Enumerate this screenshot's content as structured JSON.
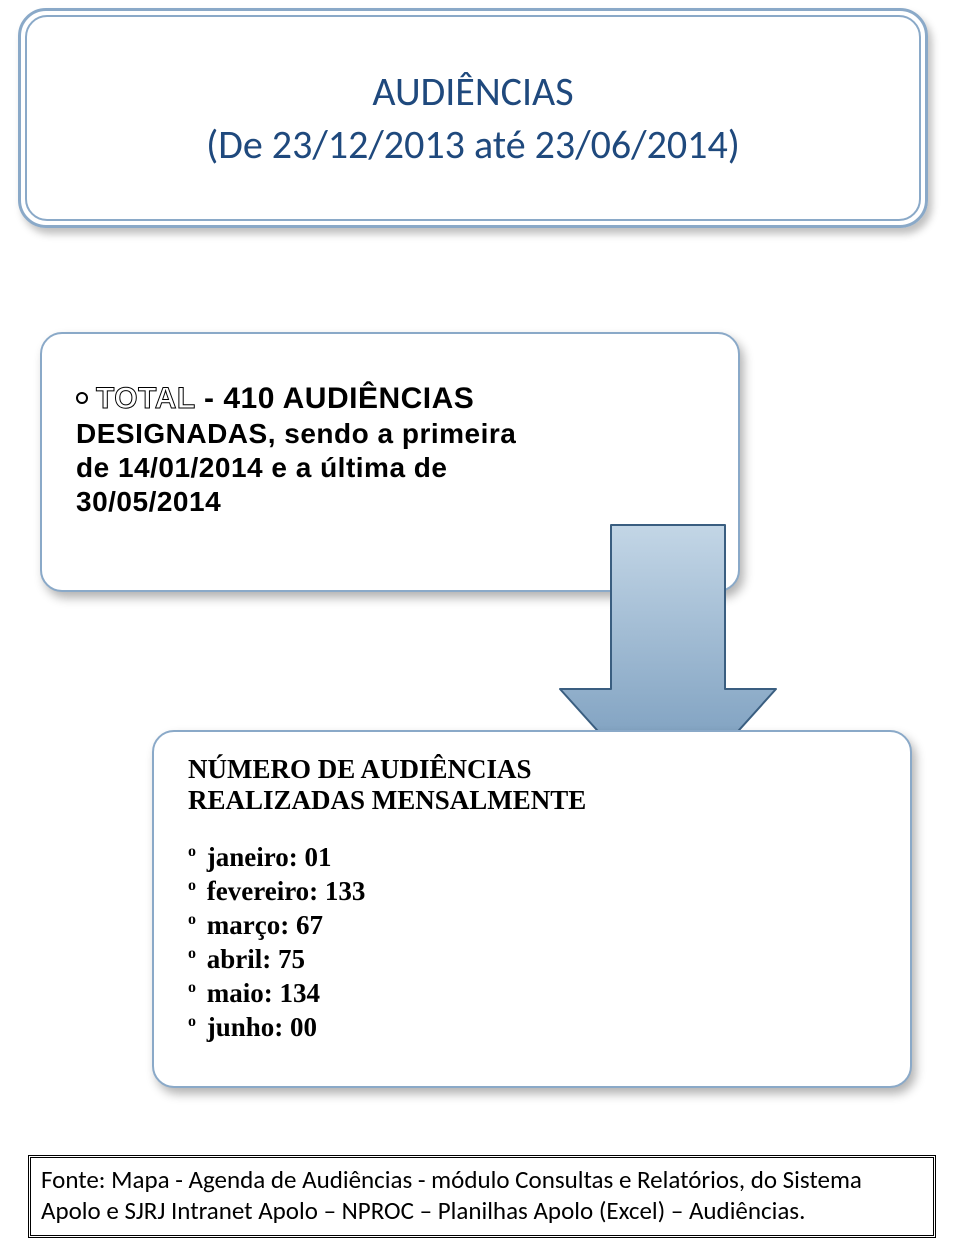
{
  "colors": {
    "box_border": "#8aa9c8",
    "title_text": "#1f497d",
    "arrow_fill_top": "#c3d6e6",
    "arrow_fill_bottom": "#6c92b6",
    "arrow_stroke": "#3a5e80",
    "footer_border": "#000000",
    "background": "#ffffff"
  },
  "title": {
    "line1": "AUDIÊNCIAS",
    "line2": "(De 23/12/2013 até 23/06/2014)",
    "fontsize": 40
  },
  "box_total": {
    "total_word": "TOTAL",
    "row1_remainder": "   -  410  AUDIÊNCIAS",
    "row2": "DESIGNADAS,  sendo  a  primeira",
    "row3": "de  14/01/2014  e  a  última  de",
    "row4": "30/05/2014",
    "fontsize": 28
  },
  "arrow": {
    "type": "down-arrow",
    "fill_gradient": [
      "#c3d6e6",
      "#6c92b6"
    ],
    "stroke": "#3a5e80",
    "stroke_width": 2
  },
  "box_monthly": {
    "header_line1": "NÚMERO DE  AUDIÊNCIAS",
    "header_line2": "REALIZADAS MENSALMENTE",
    "items": [
      "janeiro: 01",
      "fevereiro: 133",
      "março: 67",
      "abril: 75",
      "maio: 134",
      "junho: 00"
    ],
    "fontsize": 27
  },
  "footer": {
    "text": "Fonte: Mapa - Agenda de Audiências - módulo Consultas e Relatórios, do Sistema Apolo e SJRJ Intranet Apolo – NPROC – Planilhas Apolo (Excel) – Audiências.",
    "fontsize": 25
  }
}
